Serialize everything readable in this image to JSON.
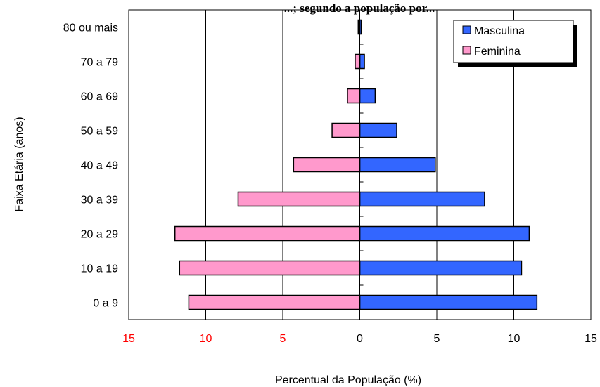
{
  "chart_data": {
    "type": "bar",
    "orientation": "horizontal",
    "chart_subtype": "population-pyramid",
    "title": "...; segundo a população por...",
    "xlabel": "Percentual da População (%)",
    "ylabel": "Faixa Etária (anos)",
    "categories": [
      "0 a 9",
      "10 a 19",
      "20 a 29",
      "30 a 39",
      "40 a 49",
      "50 a 59",
      "60 a 69",
      "70 a 79",
      "80 ou mais"
    ],
    "series": [
      {
        "name": "Masculina",
        "color": "#3366ff",
        "values": [
          11.5,
          10.5,
          11.0,
          8.1,
          4.9,
          2.4,
          1.0,
          0.3,
          0.1
        ]
      },
      {
        "name": "Feminina",
        "color": "#ff99cc",
        "values": [
          11.1,
          11.7,
          12.0,
          7.9,
          4.3,
          1.8,
          0.8,
          0.3,
          0.1
        ]
      }
    ],
    "xlim": [
      -15,
      15
    ],
    "x_ticks": [
      -15,
      -10,
      -5,
      0,
      5,
      10,
      15
    ],
    "x_tick_labels": [
      "15",
      "10",
      "5",
      "0",
      "5",
      "10",
      "15"
    ],
    "x_tick_colors": [
      "#ff0000",
      "#ff0000",
      "#ff0000",
      "#000000",
      "#000000",
      "#000000",
      "#000000"
    ],
    "grid": "vertical major gridlines",
    "legend_position": "top-right"
  }
}
